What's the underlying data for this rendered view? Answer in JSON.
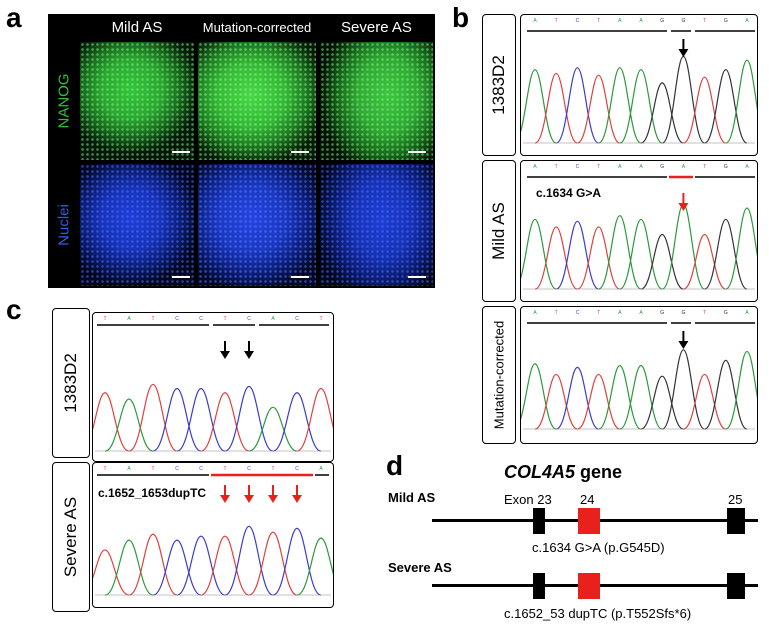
{
  "panels": {
    "a": "a",
    "b": "b",
    "c": "c",
    "d": "d"
  },
  "panel_a": {
    "columns": [
      "Mild AS",
      "Mutation-corrected",
      "Severe AS"
    ],
    "rows": [
      "NANOG",
      "Nuclei"
    ],
    "colors": {
      "nanog": "#2fbf3a",
      "nuclei": "#1a3fd0"
    }
  },
  "panel_b": {
    "traces": [
      {
        "label": "1383D2",
        "bases": "ATCTAAGGTGA",
        "annotation": ""
      },
      {
        "label": "Mild AS",
        "bases": "ATCTAAGATGA",
        "annotation": "c.1634 G>A"
      },
      {
        "label": "Mutation-corrected",
        "bases": "ATCTAAGGTGA",
        "annotation": ""
      }
    ]
  },
  "panel_c": {
    "traces": [
      {
        "label": "1383D2",
        "bases": "TATCCTCACT",
        "annotation": ""
      },
      {
        "label": "Severe AS",
        "bases": "TATCCTCTCA",
        "annotation": "c.1652_1653dupTC"
      }
    ]
  },
  "panel_d": {
    "title": "COL4A5",
    "title_suffix": " gene",
    "rows": [
      {
        "label": "Mild AS",
        "mutation": "c.1634 G>A (p.G545D)"
      },
      {
        "label": "Severe AS",
        "mutation": "c.1652_53 dupTC (p.T552Sfs*6)"
      }
    ],
    "exon_labels": {
      "exon23": "Exon 23",
      "exon24": "24",
      "exon25": "25"
    },
    "colors": {
      "mutant_exon": "#e8211d",
      "exon": "#000000"
    }
  }
}
